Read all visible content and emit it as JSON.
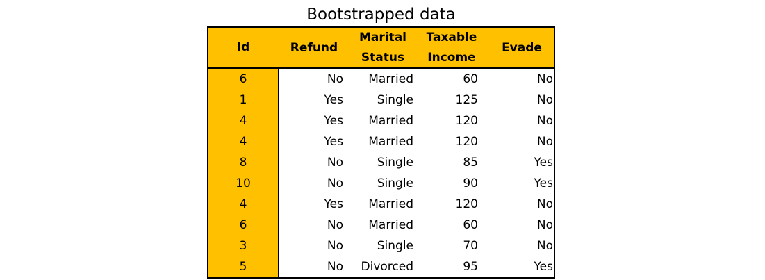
{
  "title": "Bootstrapped data",
  "colors": {
    "header_bg": "#FFC000",
    "id_column_bg": "#FFC000",
    "border": "#000000"
  },
  "table": {
    "headers": {
      "id": "Id",
      "refund": "Refund",
      "marital_line1": "Marital",
      "marital_line2": "Status",
      "taxable_line1": "Taxable",
      "taxable_line2": "Income",
      "evade": "Evade"
    },
    "rows": [
      {
        "id": "6",
        "refund": "No",
        "marital": "Married",
        "income": "60",
        "evade": "No"
      },
      {
        "id": "1",
        "refund": "Yes",
        "marital": "Single",
        "income": "125",
        "evade": "No"
      },
      {
        "id": "4",
        "refund": "Yes",
        "marital": "Married",
        "income": "120",
        "evade": "No"
      },
      {
        "id": "4",
        "refund": "Yes",
        "marital": "Married",
        "income": "120",
        "evade": "No"
      },
      {
        "id": "8",
        "refund": "No",
        "marital": "Single",
        "income": "85",
        "evade": "Yes"
      },
      {
        "id": "10",
        "refund": "No",
        "marital": "Single",
        "income": "90",
        "evade": "Yes"
      },
      {
        "id": "4",
        "refund": "Yes",
        "marital": "Married",
        "income": "120",
        "evade": "No"
      },
      {
        "id": "6",
        "refund": "No",
        "marital": "Married",
        "income": "60",
        "evade": "No"
      },
      {
        "id": "3",
        "refund": "No",
        "marital": "Single",
        "income": "70",
        "evade": "No"
      },
      {
        "id": "5",
        "refund": "No",
        "marital": "Divorced",
        "income": "95",
        "evade": "Yes"
      }
    ]
  }
}
